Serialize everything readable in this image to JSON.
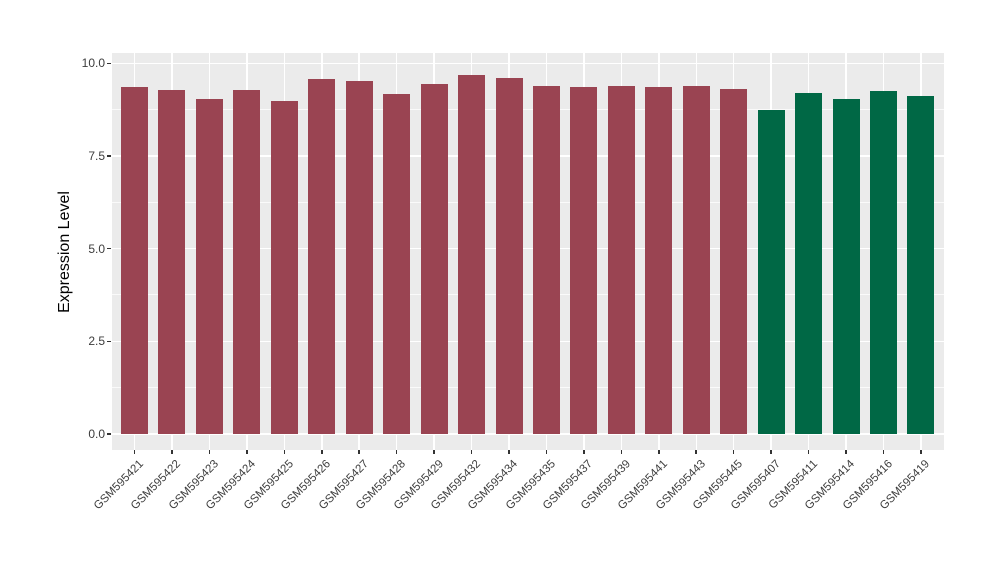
{
  "chart_data": {
    "type": "bar",
    "title": "",
    "xlabel": "",
    "ylabel": "Expression Level",
    "ylim": [
      0,
      10.3
    ],
    "y_major_ticks": [
      0.0,
      2.5,
      5.0,
      7.5,
      10.0
    ],
    "y_tick_labels": [
      "0.0",
      "2.5",
      "5.0",
      "7.5",
      "10.0"
    ],
    "y_minor_ticks": [
      1.25,
      3.75,
      6.25,
      8.75
    ],
    "grid": "white major and minor horizontal lines plus vertical major lines on grey panel",
    "legend": "none",
    "panel_background": "#EBEBEB",
    "categories": [
      "GSM595421",
      "GSM595422",
      "GSM595423",
      "GSM595424",
      "GSM595425",
      "GSM595426",
      "GSM595427",
      "GSM595428",
      "GSM595429",
      "GSM595432",
      "GSM595434",
      "GSM595435",
      "GSM595437",
      "GSM595439",
      "GSM595441",
      "GSM595443",
      "GSM595445",
      "GSM595407",
      "GSM595411",
      "GSM595414",
      "GSM595416",
      "GSM595419"
    ],
    "values": [
      9.36,
      9.28,
      9.05,
      9.27,
      8.97,
      9.58,
      9.52,
      9.18,
      9.44,
      9.69,
      9.6,
      9.38,
      9.36,
      9.39,
      9.35,
      9.39,
      9.3,
      8.74,
      9.21,
      9.05,
      9.24,
      9.13
    ],
    "groups": [
      "group1",
      "group1",
      "group1",
      "group1",
      "group1",
      "group1",
      "group1",
      "group1",
      "group1",
      "group1",
      "group1",
      "group1",
      "group1",
      "group1",
      "group1",
      "group1",
      "group1",
      "group2",
      "group2",
      "group2",
      "group2",
      "group2"
    ],
    "group_colors": {
      "group1": "#9A4452",
      "group2": "#006845"
    }
  }
}
